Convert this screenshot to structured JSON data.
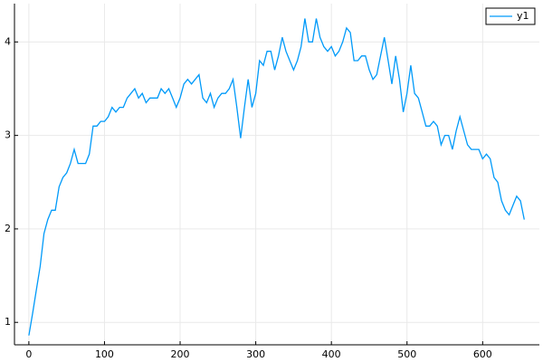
{
  "chart_data": {
    "type": "line",
    "x": [
      0,
      5,
      10,
      15,
      20,
      25,
      30,
      35,
      40,
      45,
      50,
      55,
      60,
      65,
      70,
      75,
      80,
      85,
      90,
      95,
      100,
      105,
      110,
      115,
      120,
      125,
      130,
      135,
      140,
      145,
      150,
      155,
      160,
      165,
      170,
      175,
      180,
      185,
      190,
      195,
      200,
      205,
      210,
      215,
      220,
      225,
      230,
      235,
      240,
      245,
      250,
      255,
      260,
      265,
      270,
      275,
      280,
      285,
      290,
      295,
      300,
      305,
      310,
      315,
      320,
      325,
      330,
      335,
      340,
      345,
      350,
      355,
      360,
      365,
      370,
      375,
      380,
      385,
      390,
      395,
      400,
      405,
      410,
      415,
      420,
      425,
      430,
      435,
      440,
      445,
      450,
      455,
      460,
      465,
      470,
      475,
      480,
      485,
      490,
      495,
      500,
      505,
      510,
      515,
      520,
      525,
      530,
      535,
      540,
      545,
      550,
      555,
      560,
      565,
      570,
      575,
      580,
      585,
      590,
      595,
      600,
      605,
      610,
      615,
      620,
      625,
      630,
      635,
      640,
      645,
      650,
      655
    ],
    "series": [
      {
        "name": "y1",
        "color": "#009af9",
        "values": [
          0.86,
          1.1,
          1.35,
          1.6,
          1.95,
          2.1,
          2.2,
          2.2,
          2.45,
          2.55,
          2.6,
          2.7,
          2.85,
          2.7,
          2.7,
          2.7,
          2.8,
          3.1,
          3.1,
          3.15,
          3.15,
          3.2,
          3.3,
          3.25,
          3.3,
          3.3,
          3.4,
          3.45,
          3.5,
          3.4,
          3.45,
          3.35,
          3.4,
          3.4,
          3.4,
          3.5,
          3.45,
          3.5,
          3.4,
          3.3,
          3.4,
          3.55,
          3.6,
          3.55,
          3.6,
          3.65,
          3.4,
          3.35,
          3.45,
          3.3,
          3.4,
          3.45,
          3.45,
          3.5,
          3.6,
          3.3,
          2.97,
          3.3,
          3.6,
          3.3,
          3.45,
          3.8,
          3.75,
          3.9,
          3.9,
          3.7,
          3.85,
          4.05,
          3.9,
          3.8,
          3.7,
          3.8,
          3.95,
          4.25,
          4.0,
          4.0,
          4.25,
          4.05,
          3.95,
          3.9,
          3.95,
          3.85,
          3.9,
          4.0,
          4.15,
          4.1,
          3.8,
          3.8,
          3.85,
          3.85,
          3.7,
          3.6,
          3.65,
          3.85,
          4.05,
          3.8,
          3.55,
          3.85,
          3.6,
          3.25,
          3.45,
          3.75,
          3.45,
          3.4,
          3.25,
          3.1,
          3.1,
          3.15,
          3.1,
          2.9,
          3.0,
          3.0,
          2.85,
          3.05,
          3.2,
          3.05,
          2.9,
          2.85,
          2.85,
          2.85,
          2.75,
          2.8,
          2.75,
          2.55,
          2.5,
          2.3,
          2.2,
          2.15,
          2.25,
          2.35,
          2.3,
          2.1
        ]
      }
    ],
    "xlim": [
      -19,
      675
    ],
    "ylim": [
      0.76,
      4.41
    ],
    "xticks": [
      0,
      100,
      200,
      300,
      400,
      500,
      600
    ],
    "yticks": [
      1,
      2,
      3,
      4
    ],
    "grid": true,
    "legend": "top-right"
  }
}
